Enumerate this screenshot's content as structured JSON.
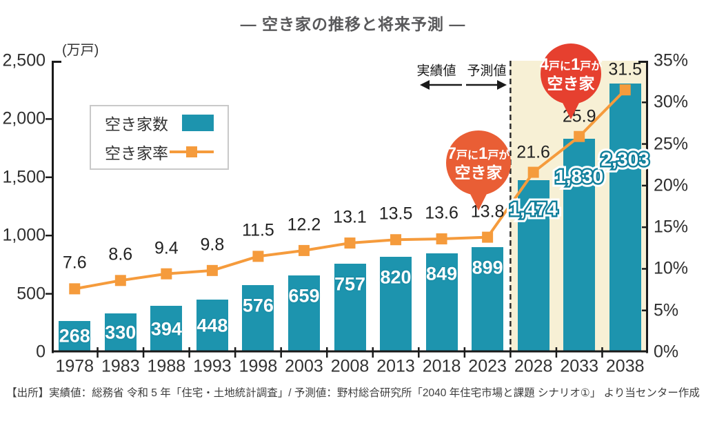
{
  "title": "― 空き家の推移と将来予測 ―",
  "legend": {
    "bars_label": "空き家数",
    "line_label": "空き家率"
  },
  "annotations": {
    "actual_label": "実績値",
    "forecast_label": "予測値",
    "bubble_7": {
      "l1_num1": "7",
      "l1_mid": "戸に",
      "l1_num2": "1",
      "l1_suffix": "戸が",
      "line2": "空き家"
    },
    "bubble_4": {
      "l1_num1": "4",
      "l1_mid": "戸に",
      "l1_num2": "1",
      "l1_suffix": "戸が",
      "line2": "空き家"
    }
  },
  "source": "【出所】実績値：総務省 令和 5 年「住宅・土地統計調査」/ 予測値：野村総合研究所「2040 年住宅市場と課題 シナリオ①」 より当センター作成",
  "colors": {
    "bar": "#1d94ae",
    "bar_label_stroke": "#12809c",
    "line": "#f59b3c",
    "forecast_bg": "#f7f0d5",
    "bubble_red": "#e6402f",
    "bubble_orange": "#e95e35",
    "axis": "#1a1a1a"
  },
  "chart_data": {
    "type": "bar+line",
    "title": "― 空き家の推移と将来予測 ―",
    "categories": [
      "1978",
      "1983",
      "1988",
      "1993",
      "1998",
      "2003",
      "2008",
      "2013",
      "2018",
      "2023",
      "2028",
      "2033",
      "2038"
    ],
    "series": [
      {
        "name": "空き家数",
        "type": "bar",
        "axis": "left",
        "values": [
          268,
          330,
          394,
          448,
          576,
          659,
          757,
          820,
          849,
          899,
          1474,
          1830,
          2303
        ],
        "labels": [
          "268",
          "330",
          "394",
          "448",
          "576",
          "659",
          "757",
          "820",
          "849",
          "899",
          "1,474",
          "1,830",
          "2,303"
        ]
      },
      {
        "name": "空き家率",
        "type": "line",
        "axis": "right",
        "values": [
          7.6,
          8.6,
          9.4,
          9.8,
          11.5,
          12.2,
          13.1,
          13.5,
          13.6,
          13.8,
          21.6,
          25.9,
          31.5
        ],
        "labels": [
          "7.6",
          "8.6",
          "9.4",
          "9.8",
          "11.5",
          "12.2",
          "13.1",
          "13.5",
          "13.6",
          "13.8",
          "21.6",
          "25.9",
          "31.5"
        ]
      }
    ],
    "forecast_start_index": 10,
    "left_axis": {
      "unit": "(万戸)",
      "min": 0,
      "max": 2500,
      "ticks": [
        {
          "v": 0,
          "label": "0"
        },
        {
          "v": 500,
          "label": "500"
        },
        {
          "v": 1000,
          "label": "1,000"
        },
        {
          "v": 1500,
          "label": "1,500"
        },
        {
          "v": 2000,
          "label": "2,000"
        },
        {
          "v": 2500,
          "label": "2,500"
        }
      ]
    },
    "right_axis": {
      "min": 0,
      "max": 35,
      "unit": "%",
      "ticks": [
        {
          "v": 0,
          "label": "0%"
        },
        {
          "v": 5,
          "label": "5%"
        },
        {
          "v": 10,
          "label": "10%"
        },
        {
          "v": 15,
          "label": "15%"
        },
        {
          "v": 20,
          "label": "20%"
        },
        {
          "v": 25,
          "label": "25%"
        },
        {
          "v": 30,
          "label": "30%"
        },
        {
          "v": 35,
          "label": "35%"
        }
      ]
    },
    "grid": false,
    "legend_position": "upper-left"
  }
}
